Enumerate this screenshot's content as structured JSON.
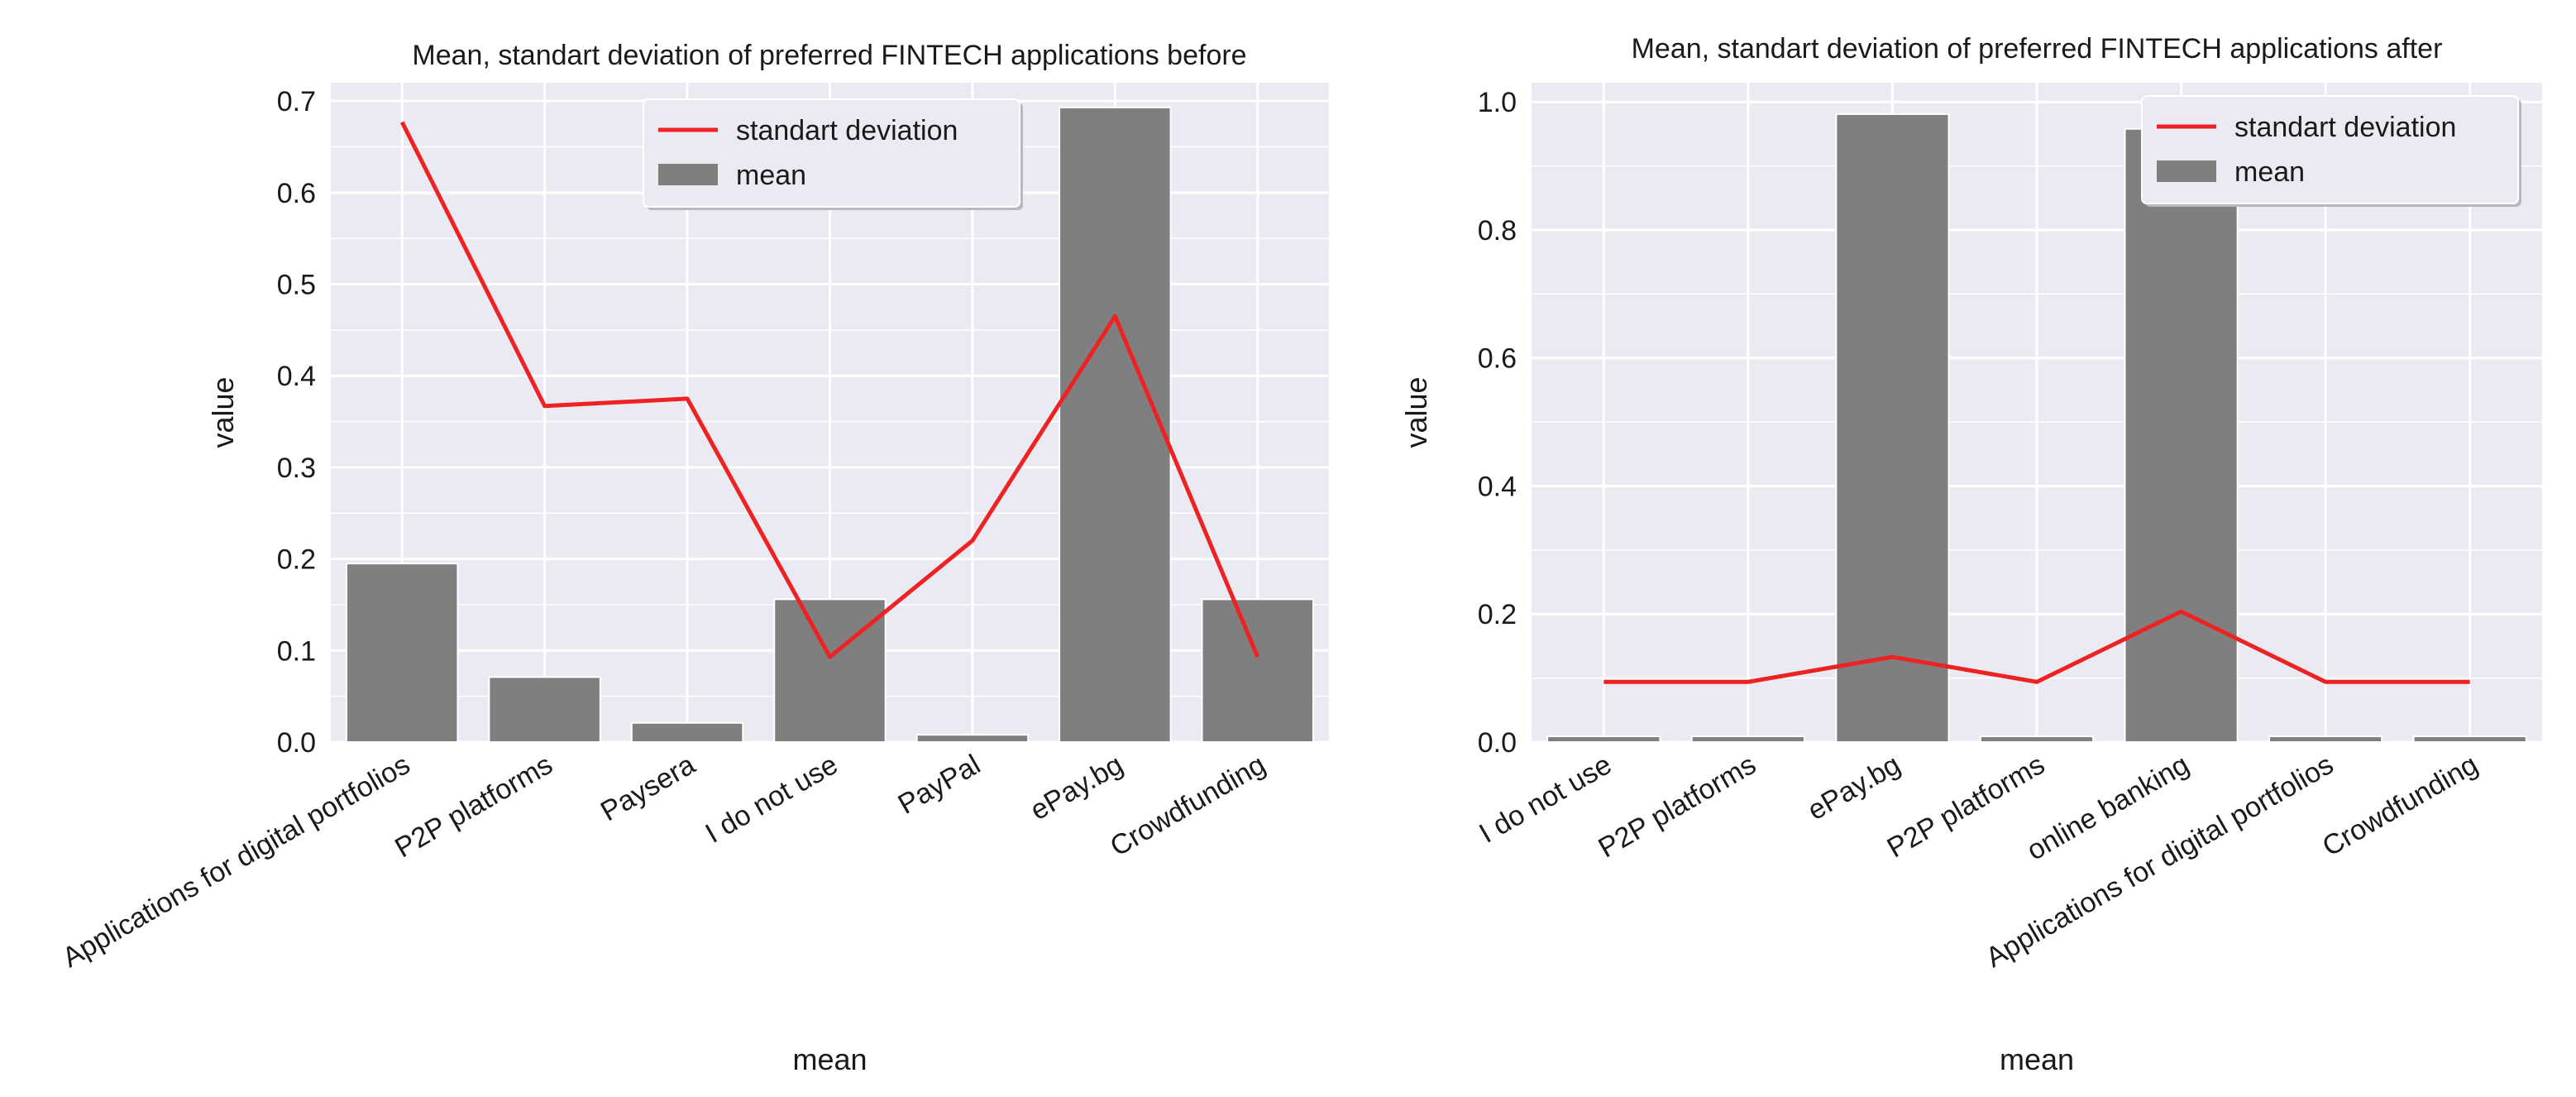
{
  "chart_data": [
    {
      "type": "bar",
      "title": "Mean, standart deviation of preferred FINTECH applications before",
      "xlabel": "mean",
      "ylabel": "value",
      "categories": [
        "Applications for digital portfolios",
        "P2P platforms",
        "Paysera",
        "I do not use",
        "PayPal",
        "ePay.bg",
        "Crowdfunding"
      ],
      "series": [
        {
          "name": "mean",
          "kind": "bar",
          "color": "#7f7f7f",
          "values": [
            0.195,
            0.071,
            0.021,
            0.156,
            0.008,
            0.693,
            0.156
          ]
        },
        {
          "name": "standart deviation",
          "kind": "line",
          "color": "#ee2222",
          "values": [
            0.677,
            0.367,
            0.375,
            0.093,
            0.22,
            0.465,
            0.093
          ]
        }
      ],
      "ylim": [
        0,
        0.72
      ],
      "yticks": [
        "0.0",
        "0.1",
        "0.2",
        "0.3",
        "0.4",
        "0.5",
        "0.6",
        "0.7"
      ],
      "grid": true,
      "legend_position": "top-center"
    },
    {
      "type": "bar",
      "title": "Mean, standart deviation of preferred FINTECH applications after",
      "xlabel": "mean",
      "ylabel": "value",
      "categories": [
        "I do not use",
        "P2P platforms",
        "ePay.bg",
        "P2P platforms",
        "online banking",
        "Applications for digital portfolios",
        "Crowdfunding"
      ],
      "series": [
        {
          "name": "mean",
          "kind": "bar",
          "color": "#7f7f7f",
          "values": [
            0.009,
            0.009,
            0.981,
            0.009,
            0.958,
            0.009,
            0.009
          ]
        },
        {
          "name": "standart deviation",
          "kind": "line",
          "color": "#ee2222",
          "values": [
            0.094,
            0.094,
            0.133,
            0.094,
            0.204,
            0.094,
            0.094
          ]
        }
      ],
      "ylim": [
        0,
        1.03
      ],
      "yticks": [
        "0.0",
        "0.2",
        "0.4",
        "0.6",
        "0.8",
        "1.0"
      ],
      "grid": true,
      "legend_position": "top-right"
    }
  ]
}
